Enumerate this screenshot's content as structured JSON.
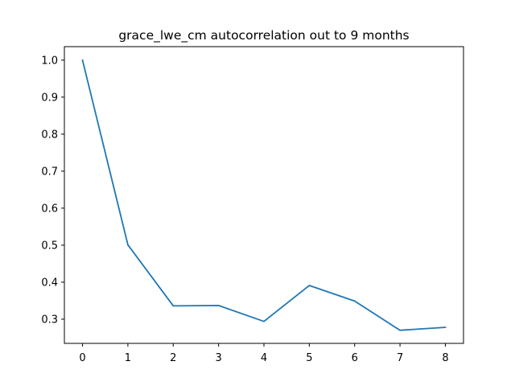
{
  "chart_data": {
    "type": "line",
    "title": "grace_lwe_cm autocorrelation out to 9 months",
    "xlabel": "",
    "ylabel": "",
    "x": [
      0,
      1,
      2,
      3,
      4,
      5,
      6,
      7,
      8
    ],
    "series": [
      {
        "values": [
          1.0,
          0.501,
          0.336,
          0.337,
          0.294,
          0.391,
          0.349,
          0.27,
          0.278
        ],
        "color": "#1f77b4"
      }
    ],
    "xlim": [
      -0.4,
      8.4
    ],
    "ylim": [
      0.2346,
      1.0365
    ],
    "xticks": [
      0,
      1,
      2,
      3,
      4,
      5,
      6,
      7,
      8
    ],
    "xtick_labels": [
      "0",
      "1",
      "2",
      "3",
      "4",
      "5",
      "6",
      "7",
      "8"
    ],
    "yticks": [
      0.3,
      0.4,
      0.5,
      0.6,
      0.7,
      0.8,
      0.9,
      1.0
    ],
    "ytick_labels": [
      "0.3",
      "0.4",
      "0.5",
      "0.6",
      "0.7",
      "0.8",
      "0.9",
      "1.0"
    ],
    "grid": false,
    "legend": "none"
  }
}
